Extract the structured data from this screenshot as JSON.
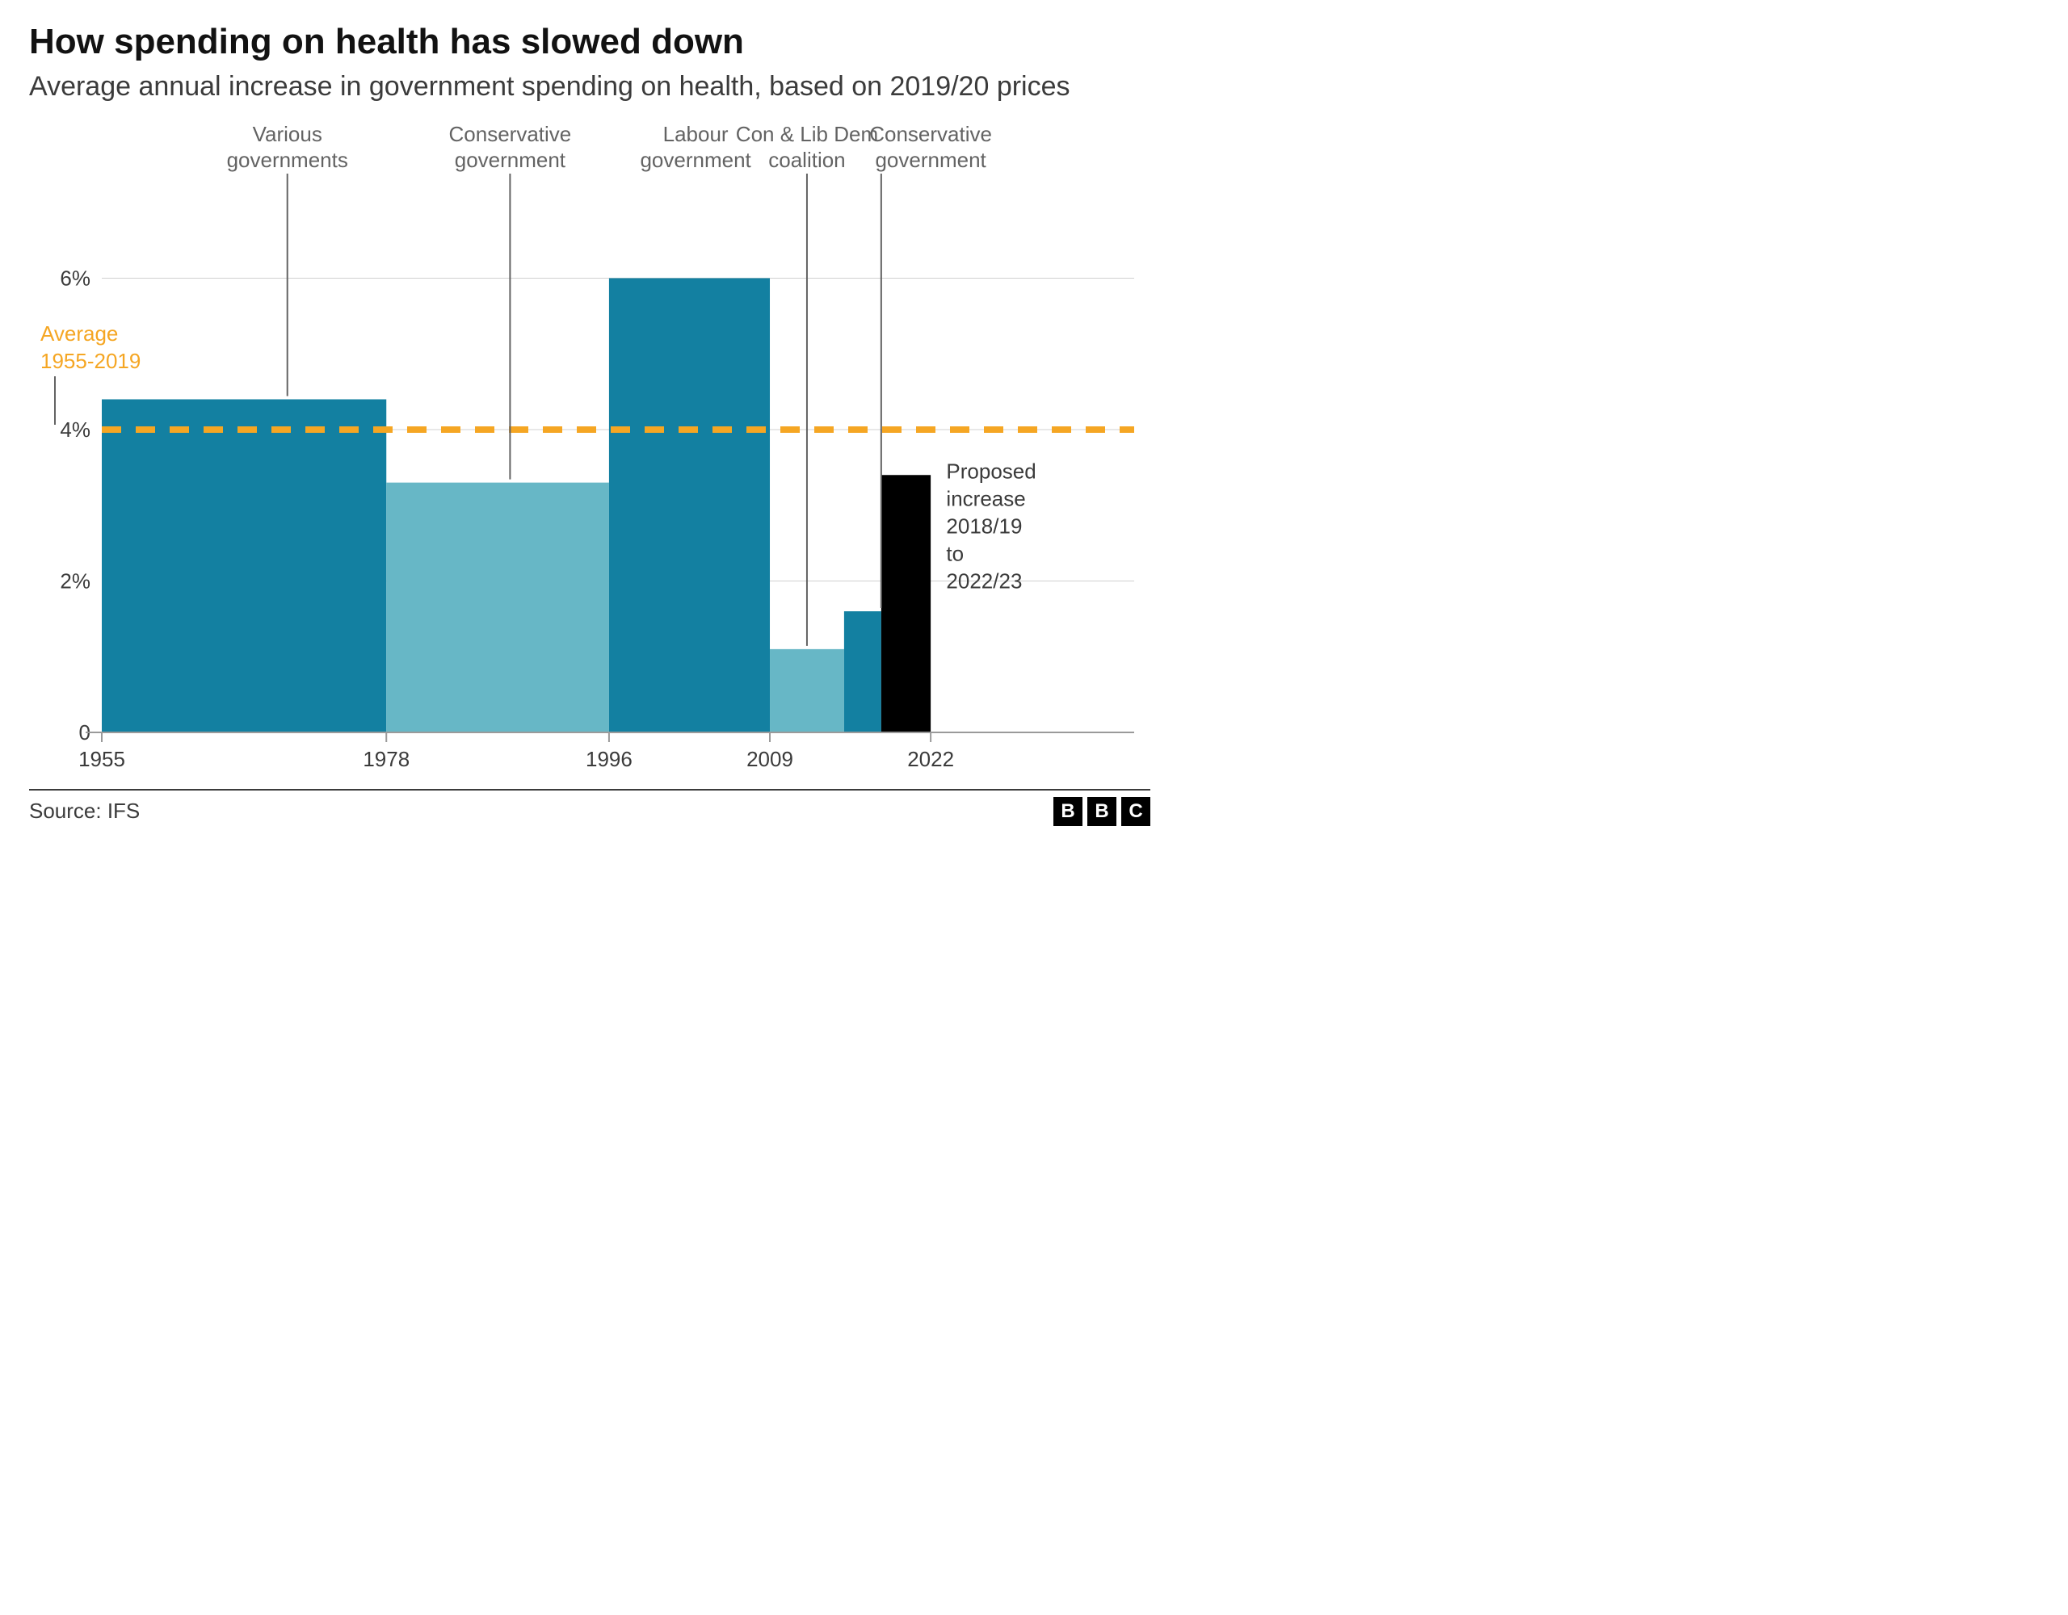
{
  "title": "How spending on health has slowed down",
  "subtitle": "Average annual increase in government spending on health, based on 2019/20 prices",
  "source": "Source: IFS",
  "logo": {
    "letters": [
      "B",
      "B",
      "C"
    ]
  },
  "chart": {
    "type": "bar",
    "background_color": "#ffffff",
    "grid_color": "#d0d0d0",
    "axis_color": "#9a9a9a",
    "text_color": "#636363",
    "label_fontsize": 26,
    "callout_fontsize": 26,
    "title_fontsize": 44,
    "subtitle_fontsize": 34,
    "x": {
      "min": 1955,
      "max": 2028,
      "ticks": [
        1955,
        1978,
        1996,
        2009,
        2022
      ]
    },
    "y": {
      "min": 0,
      "max": 6.4,
      "ticks": [
        0,
        2,
        4,
        6
      ],
      "tick_labels": [
        "0",
        "2%",
        "4%",
        "6%"
      ]
    },
    "average": {
      "value": 4.0,
      "color": "#f5a623",
      "label1": "Average",
      "label2": "1955-2019",
      "dash": "24 18",
      "width": 8
    },
    "bars": [
      {
        "from": 1955,
        "to": 1978,
        "value": 4.4,
        "color": "#1380a1",
        "callout": {
          "line1": "Various",
          "line2": "governments",
          "at_year": 1970,
          "leader_from_value": 4.4
        }
      },
      {
        "from": 1978,
        "to": 1996,
        "value": 3.3,
        "color": "#67b7c6",
        "callout": {
          "line1": "Conservative",
          "line2": "government",
          "at_year": 1988,
          "leader_from_value": 3.3
        }
      },
      {
        "from": 1996,
        "to": 2009,
        "value": 6.0,
        "color": "#1380a1",
        "callout": {
          "line1": "Labour",
          "line2": "government",
          "at_year": 2003,
          "leader_from_value": 6.0,
          "no_leader": true
        }
      },
      {
        "from": 2009,
        "to": 2015,
        "value": 1.1,
        "color": "#67b7c6",
        "callout": {
          "line1": "Con & Lib Dem",
          "line2": "coalition",
          "at_year": 2012,
          "leader_from_value": 1.1
        }
      },
      {
        "from": 2015,
        "to": 2018,
        "value": 1.6,
        "color": "#1380a1",
        "callout": {
          "line1": "Conservative",
          "line2": "government",
          "at_year": 2018,
          "leader_from_value": 1.6,
          "label_offset_year": 4
        }
      },
      {
        "from": 2018,
        "to": 2022,
        "value": 3.4,
        "color": "#000000"
      }
    ],
    "right_note": {
      "lines": [
        "Proposed",
        "increase",
        "2018/19",
        "to",
        "2022/23"
      ],
      "anchor_year": 2023,
      "anchor_value": 3.4
    },
    "leader_color": "#636363",
    "leader_width": 2
  }
}
